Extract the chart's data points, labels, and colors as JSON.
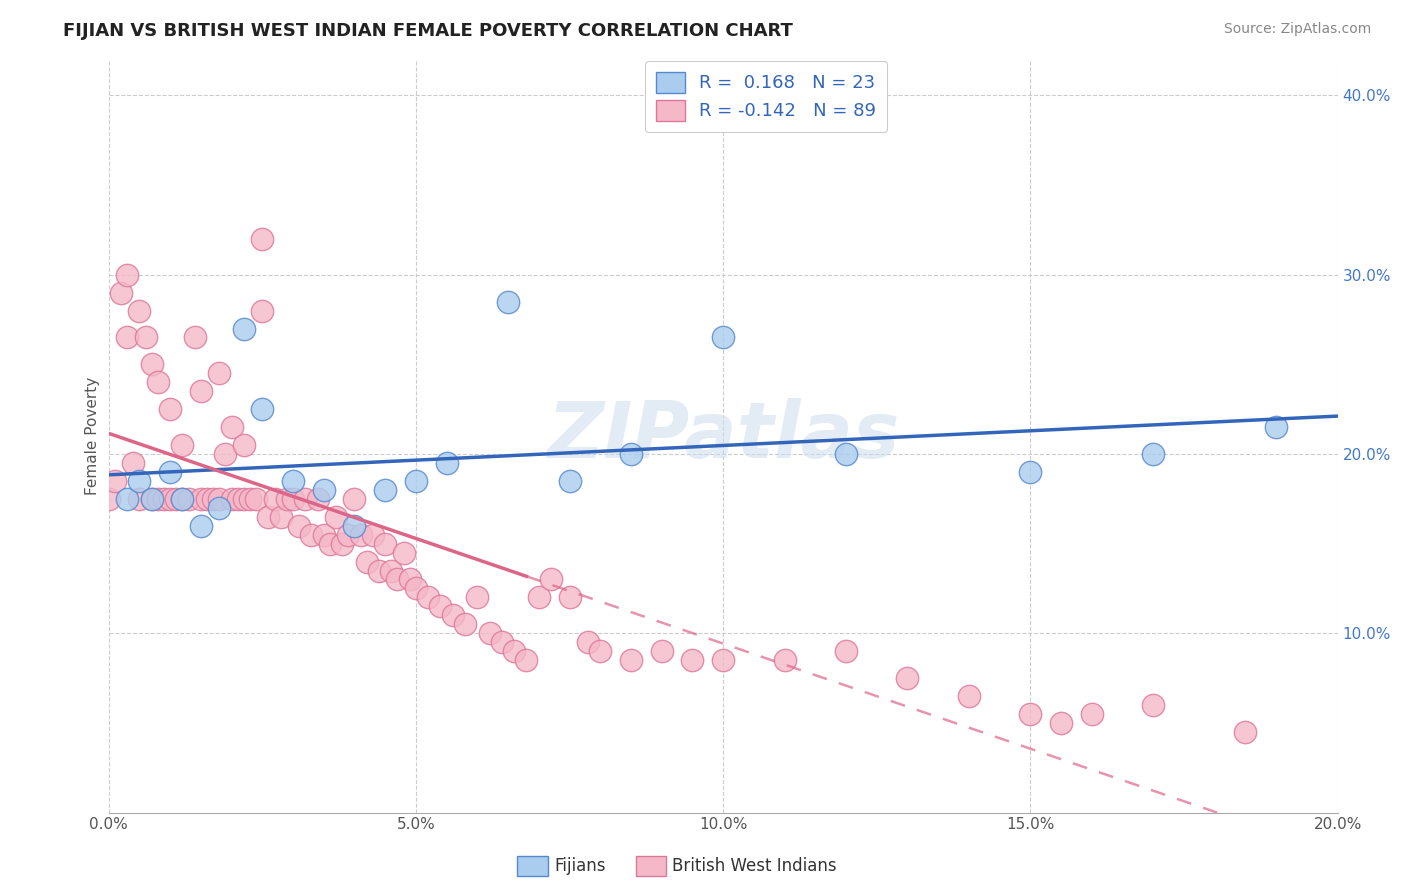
{
  "title": "FIJIAN VS BRITISH WEST INDIAN FEMALE POVERTY CORRELATION CHART",
  "source": "Source: ZipAtlas.com",
  "ylabel": "Female Poverty",
  "xlim": [
    0.0,
    0.2
  ],
  "ylim": [
    0.0,
    0.42
  ],
  "xticks": [
    0.0,
    0.05,
    0.1,
    0.15,
    0.2
  ],
  "xtick_labels": [
    "0.0%",
    "5.0%",
    "10.0%",
    "15.0%",
    "20.0%"
  ],
  "yticks_right": [
    0.1,
    0.2,
    0.3,
    0.4
  ],
  "ytick_labels_right": [
    "10.0%",
    "20.0%",
    "30.0%",
    "40.0%"
  ],
  "grid_color": "#cccccc",
  "background_color": "#ffffff",
  "fijian_color": "#aaccee",
  "fijian_edge_color": "#5588cc",
  "bwi_color": "#f5b8c8",
  "bwi_edge_color": "#dd7799",
  "fijian_R": 0.168,
  "fijian_N": 23,
  "bwi_R": -0.142,
  "bwi_N": 89,
  "fijian_line_color": "#3366bb",
  "bwi_line_color": "#dd6688",
  "watermark": "ZIPatlas",
  "legend_label_fijian": "Fijians",
  "legend_label_bwi": "British West Indians",
  "fijian_scatter_x": [
    0.003,
    0.005,
    0.007,
    0.01,
    0.012,
    0.015,
    0.018,
    0.022,
    0.025,
    0.03,
    0.035,
    0.04,
    0.045,
    0.05,
    0.055,
    0.065,
    0.075,
    0.085,
    0.1,
    0.12,
    0.15,
    0.17,
    0.19
  ],
  "fijian_scatter_y": [
    0.175,
    0.185,
    0.175,
    0.19,
    0.175,
    0.16,
    0.17,
    0.27,
    0.225,
    0.185,
    0.18,
    0.16,
    0.18,
    0.185,
    0.195,
    0.285,
    0.185,
    0.2,
    0.265,
    0.2,
    0.19,
    0.2,
    0.215
  ],
  "bwi_scatter_x": [
    0.0,
    0.001,
    0.002,
    0.003,
    0.003,
    0.004,
    0.005,
    0.005,
    0.006,
    0.007,
    0.007,
    0.008,
    0.008,
    0.009,
    0.01,
    0.01,
    0.011,
    0.012,
    0.012,
    0.013,
    0.014,
    0.015,
    0.015,
    0.016,
    0.017,
    0.018,
    0.018,
    0.019,
    0.02,
    0.02,
    0.021,
    0.022,
    0.022,
    0.023,
    0.024,
    0.025,
    0.025,
    0.026,
    0.027,
    0.028,
    0.029,
    0.03,
    0.031,
    0.032,
    0.033,
    0.034,
    0.035,
    0.036,
    0.037,
    0.038,
    0.039,
    0.04,
    0.041,
    0.042,
    0.043,
    0.044,
    0.045,
    0.046,
    0.047,
    0.048,
    0.049,
    0.05,
    0.052,
    0.054,
    0.056,
    0.058,
    0.06,
    0.062,
    0.064,
    0.066,
    0.068,
    0.07,
    0.072,
    0.075,
    0.078,
    0.08,
    0.085,
    0.09,
    0.095,
    0.1,
    0.11,
    0.12,
    0.13,
    0.14,
    0.15,
    0.155,
    0.16,
    0.17,
    0.185
  ],
  "bwi_scatter_y": [
    0.175,
    0.185,
    0.29,
    0.265,
    0.3,
    0.195,
    0.175,
    0.28,
    0.265,
    0.175,
    0.25,
    0.175,
    0.24,
    0.175,
    0.175,
    0.225,
    0.175,
    0.175,
    0.205,
    0.175,
    0.265,
    0.175,
    0.235,
    0.175,
    0.175,
    0.175,
    0.245,
    0.2,
    0.175,
    0.215,
    0.175,
    0.175,
    0.205,
    0.175,
    0.175,
    0.32,
    0.28,
    0.165,
    0.175,
    0.165,
    0.175,
    0.175,
    0.16,
    0.175,
    0.155,
    0.175,
    0.155,
    0.15,
    0.165,
    0.15,
    0.155,
    0.175,
    0.155,
    0.14,
    0.155,
    0.135,
    0.15,
    0.135,
    0.13,
    0.145,
    0.13,
    0.125,
    0.12,
    0.115,
    0.11,
    0.105,
    0.12,
    0.1,
    0.095,
    0.09,
    0.085,
    0.12,
    0.13,
    0.12,
    0.095,
    0.09,
    0.085,
    0.09,
    0.085,
    0.085,
    0.085,
    0.09,
    0.075,
    0.065,
    0.055,
    0.05,
    0.055,
    0.06,
    0.045
  ]
}
